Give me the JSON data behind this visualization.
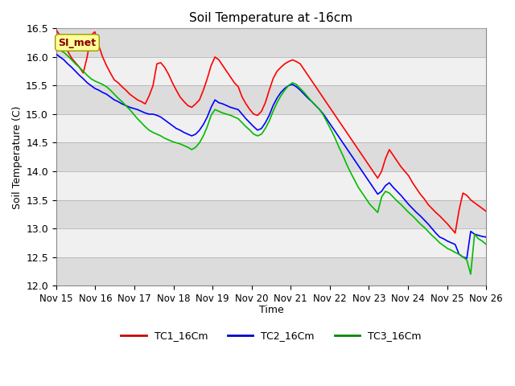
{
  "title": "Soil Temperature at -16cm",
  "xlabel": "Time",
  "ylabel": "Soil Temperature (C)",
  "ylim": [
    12.0,
    16.5
  ],
  "yticks": [
    12.0,
    12.5,
    13.0,
    13.5,
    14.0,
    14.5,
    15.0,
    15.5,
    16.0,
    16.5
  ],
  "xtick_labels": [
    "Nov 15",
    "Nov 16",
    "Nov 17",
    "Nov 18",
    "Nov 19",
    "Nov 20",
    "Nov 21",
    "Nov 22",
    "Nov 23",
    "Nov 24",
    "Nov 25",
    "Nov 26"
  ],
  "series_colors": [
    "#ff0000",
    "#0000ff",
    "#00bb00"
  ],
  "series_names": [
    "TC1_16Cm",
    "TC2_16Cm",
    "TC3_16Cm"
  ],
  "annotation_text": "SI_met",
  "background_color": "#ffffff",
  "plot_bg_light": "#f0f0f0",
  "plot_bg_dark": "#dcdcdc",
  "legend_line_colors": [
    "#cc0000",
    "#0000cc",
    "#008800"
  ],
  "tc1": [
    16.47,
    16.38,
    16.3,
    16.1,
    15.98,
    15.9,
    15.82,
    15.72,
    16.0,
    16.38,
    16.44,
    16.2,
    16.0,
    15.85,
    15.72,
    15.6,
    15.55,
    15.48,
    15.42,
    15.35,
    15.3,
    15.25,
    15.22,
    15.18,
    15.32,
    15.5,
    15.88,
    15.9,
    15.82,
    15.7,
    15.55,
    15.42,
    15.3,
    15.22,
    15.15,
    15.12,
    15.18,
    15.25,
    15.42,
    15.62,
    15.85,
    16.0,
    15.95,
    15.85,
    15.75,
    15.65,
    15.55,
    15.48,
    15.3,
    15.18,
    15.08,
    15.0,
    14.98,
    15.05,
    15.2,
    15.42,
    15.62,
    15.75,
    15.82,
    15.88,
    15.92,
    15.95,
    15.92,
    15.88,
    15.78,
    15.68,
    15.58,
    15.48,
    15.38,
    15.28,
    15.18,
    15.08,
    14.98,
    14.88,
    14.78,
    14.68,
    14.58,
    14.48,
    14.38,
    14.28,
    14.18,
    14.08,
    13.98,
    13.88,
    14.0,
    14.22,
    14.38,
    14.28,
    14.18,
    14.08,
    14.0,
    13.92,
    13.8,
    13.7,
    13.6,
    13.52,
    13.42,
    13.35,
    13.28,
    13.22,
    13.15,
    13.08,
    13.0,
    12.92,
    13.32,
    13.62,
    13.58,
    13.5,
    13.45,
    13.4,
    13.35,
    13.3
  ],
  "tc2": [
    16.05,
    16.0,
    15.95,
    15.88,
    15.82,
    15.75,
    15.68,
    15.62,
    15.55,
    15.5,
    15.45,
    15.42,
    15.38,
    15.35,
    15.3,
    15.25,
    15.22,
    15.18,
    15.15,
    15.12,
    15.1,
    15.08,
    15.05,
    15.02,
    15.0,
    15.0,
    14.98,
    14.95,
    14.9,
    14.85,
    14.8,
    14.75,
    14.72,
    14.68,
    14.65,
    14.62,
    14.65,
    14.72,
    14.82,
    14.95,
    15.12,
    15.25,
    15.2,
    15.18,
    15.15,
    15.12,
    15.1,
    15.08,
    15.0,
    14.92,
    14.85,
    14.78,
    14.72,
    14.75,
    14.85,
    14.98,
    15.15,
    15.28,
    15.38,
    15.45,
    15.5,
    15.52,
    15.48,
    15.42,
    15.35,
    15.28,
    15.22,
    15.15,
    15.08,
    15.0,
    14.9,
    14.8,
    14.7,
    14.6,
    14.5,
    14.4,
    14.3,
    14.2,
    14.1,
    14.0,
    13.9,
    13.8,
    13.7,
    13.6,
    13.65,
    13.75,
    13.8,
    13.72,
    13.65,
    13.58,
    13.5,
    13.42,
    13.35,
    13.28,
    13.22,
    13.15,
    13.08,
    13.0,
    12.92,
    12.85,
    12.82,
    12.78,
    12.75,
    12.72,
    12.55,
    12.5,
    12.48,
    12.95,
    12.9,
    12.88,
    12.86,
    12.85
  ],
  "tc3": [
    16.18,
    16.12,
    16.08,
    16.02,
    15.95,
    15.88,
    15.82,
    15.75,
    15.68,
    15.62,
    15.58,
    15.55,
    15.52,
    15.48,
    15.42,
    15.35,
    15.28,
    15.22,
    15.15,
    15.08,
    15.0,
    14.92,
    14.85,
    14.78,
    14.72,
    14.68,
    14.65,
    14.62,
    14.58,
    14.55,
    14.52,
    14.5,
    14.48,
    14.45,
    14.42,
    14.38,
    14.42,
    14.5,
    14.62,
    14.78,
    14.98,
    15.08,
    15.05,
    15.02,
    15.0,
    14.98,
    14.95,
    14.92,
    14.85,
    14.78,
    14.72,
    14.65,
    14.62,
    14.65,
    14.75,
    14.88,
    15.05,
    15.2,
    15.32,
    15.42,
    15.5,
    15.55,
    15.52,
    15.45,
    15.38,
    15.3,
    15.22,
    15.15,
    15.08,
    14.98,
    14.85,
    14.72,
    14.58,
    14.42,
    14.28,
    14.12,
    13.98,
    13.85,
    13.72,
    13.62,
    13.52,
    13.42,
    13.35,
    13.28,
    13.55,
    13.65,
    13.62,
    13.55,
    13.48,
    13.42,
    13.35,
    13.28,
    13.22,
    13.15,
    13.08,
    13.02,
    12.95,
    12.88,
    12.82,
    12.75,
    12.7,
    12.65,
    12.62,
    12.58,
    12.55,
    12.5,
    12.45,
    12.2,
    12.9,
    12.82,
    12.78,
    12.72
  ]
}
